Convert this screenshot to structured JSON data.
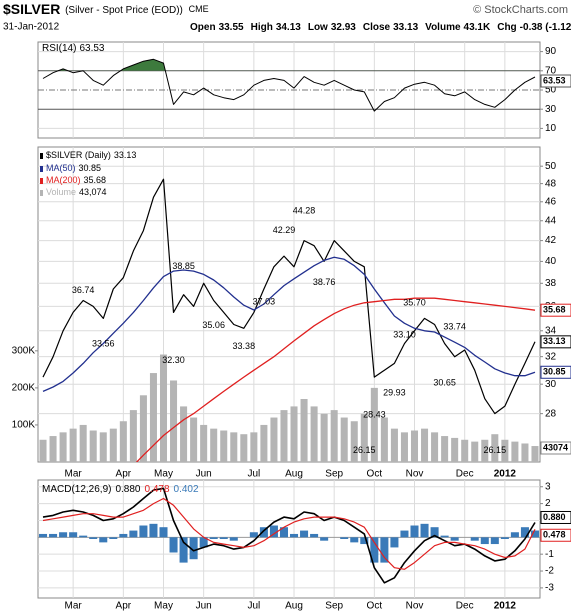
{
  "header": {
    "symbol": "$SILVER",
    "description": "(Silver - Spot Price (EOD))",
    "exchange": "CME",
    "date": "31-Jan-2012",
    "source": "© StockCharts.com",
    "quote": [
      {
        "label": "Open",
        "value": "33.55"
      },
      {
        "label": "High",
        "value": "34.13"
      },
      {
        "label": "Low",
        "value": "32.93"
      },
      {
        "label": "Close",
        "value": "33.13"
      },
      {
        "label": "Volume",
        "value": "43.1K"
      },
      {
        "label": "Chg",
        "value": "-0.38 (-1.12%)"
      }
    ]
  },
  "chart_data": [
    {
      "type": "rsi",
      "ylim": [
        0,
        100
      ],
      "yticks": [
        90,
        70,
        50,
        30,
        10
      ],
      "overbought": 70,
      "oversold": 30,
      "fill_color": "#3d7a3d",
      "series": [
        {
          "name": "RSI(14)",
          "color": "#000000",
          "values": [
            62,
            68,
            72,
            68,
            70,
            60,
            55,
            65,
            72,
            76,
            80,
            82,
            78,
            35,
            48,
            45,
            52,
            45,
            42,
            40,
            45,
            55,
            60,
            62,
            60,
            52,
            64,
            58,
            55,
            60,
            55,
            50,
            48,
            28,
            38,
            42,
            52,
            56,
            58,
            55,
            46,
            44,
            48,
            40,
            35,
            32,
            40,
            50,
            58,
            63.53
          ]
        }
      ]
    },
    {
      "type": "price",
      "log_scale": true,
      "grid": true,
      "ylim": [
        25,
        52.3
      ],
      "yticks": [
        28,
        30,
        32,
        34,
        36,
        38,
        40,
        42,
        44,
        46,
        48,
        50
      ],
      "y2lim": [
        0,
        850000
      ],
      "y2ticks": [
        {
          "value": 100000,
          "label": "100K"
        },
        {
          "value": 200000,
          "label": "200K"
        },
        {
          "value": 300000,
          "label": "300K"
        }
      ],
      "categories": [
        null,
        null,
        null,
        "Mar",
        null,
        null,
        null,
        null,
        "Apr",
        null,
        null,
        null,
        "May",
        null,
        null,
        null,
        "Jun",
        null,
        null,
        null,
        null,
        "Jul",
        null,
        null,
        null,
        "Aug",
        null,
        null,
        null,
        "Sep",
        null,
        null,
        null,
        "Oct",
        null,
        null,
        null,
        "Nov",
        null,
        null,
        null,
        null,
        "Dec",
        null,
        null,
        null,
        "2012",
        null,
        null,
        null
      ],
      "series": [
        {
          "name": "$SILVER (Daily)",
          "color": "#000000",
          "values": [
            30.5,
            32,
            34,
            35.5,
            36.5,
            36,
            35,
            37.5,
            38.5,
            41,
            43,
            46.5,
            48.5,
            35.5,
            37,
            36,
            38,
            36.5,
            35.5,
            34.5,
            34.2,
            35.5,
            37.5,
            39.5,
            40.5,
            39.5,
            42,
            41.5,
            40,
            42,
            41,
            40,
            39.5,
            30.5,
            31,
            31.5,
            33,
            34,
            35,
            34.5,
            33,
            32,
            32.5,
            31,
            29,
            28,
            28.5,
            30,
            31.5,
            33.13
          ]
        },
        {
          "name": "MA(50)",
          "color": "#22308f",
          "values": [
            29.5,
            29.8,
            30.2,
            30.8,
            31.5,
            32.3,
            33,
            33.8,
            34.6,
            35.5,
            36.5,
            37.6,
            38.6,
            39.1,
            39.2,
            39.1,
            38.8,
            38.3,
            37.6,
            36.8,
            36.1,
            35.7,
            36.2,
            37,
            37.8,
            38.4,
            39,
            39.6,
            40.1,
            40.4,
            40.2,
            39.6,
            38.8,
            37.5,
            36.3,
            35.2,
            34.6,
            34.2,
            34,
            33.9,
            33.5,
            33.1,
            32.7,
            32.1,
            31.6,
            31.1,
            30.8,
            30.6,
            30.6,
            30.85
          ]
        },
        {
          "name": "MA(200)",
          "color": "#e02020",
          "values": [
            21,
            21.4,
            21.8,
            22.2,
            22.6,
            23,
            23.4,
            23.8,
            24.3,
            24.8,
            25.4,
            26,
            26.6,
            27.1,
            27.6,
            28,
            28.5,
            29,
            29.5,
            30,
            30.5,
            31,
            31.5,
            32,
            32.6,
            33.2,
            33.8,
            34.4,
            34.9,
            35.4,
            35.8,
            36.1,
            36.3,
            36.4,
            36.5,
            36.6,
            36.6,
            36.7,
            36.7,
            36.7,
            36.6,
            36.5,
            36.4,
            36.3,
            36.2,
            36.1,
            36,
            35.9,
            35.8,
            35.68
          ]
        },
        {
          "name": "Volume",
          "color": "#b4b4b4",
          "axis": "y2",
          "last_label": "43,074",
          "values": [
            60000,
            70000,
            80000,
            90000,
            100000,
            85000,
            80000,
            90000,
            110000,
            140000,
            180000,
            240000,
            290000,
            220000,
            150000,
            120000,
            100000,
            90000,
            85000,
            80000,
            75000,
            80000,
            100000,
            120000,
            140000,
            150000,
            170000,
            150000,
            130000,
            140000,
            120000,
            110000,
            130000,
            200000,
            120000,
            90000,
            80000,
            85000,
            90000,
            80000,
            70000,
            65000,
            60000,
            55000,
            60000,
            75000,
            60000,
            55000,
            50000,
            43074
          ]
        }
      ],
      "annotations": [
        {
          "label": "36.74",
          "value": 36.74,
          "at": 4
        },
        {
          "label": "33.56",
          "value": 33.56,
          "at": 6
        },
        {
          "label": "38.85",
          "value": 38.85,
          "at": 14
        },
        {
          "label": "32.30",
          "value": 32.3,
          "at": 13
        },
        {
          "label": "35.06",
          "value": 35.06,
          "at": 17
        },
        {
          "label": "33.38",
          "value": 33.38,
          "at": 20
        },
        {
          "label": "42.29",
          "value": 42.29,
          "at": 24
        },
        {
          "label": "44.28",
          "value": 44.28,
          "at": 26
        },
        {
          "label": "37.03",
          "value": 37.03,
          "at": 22
        },
        {
          "label": "38.76",
          "value": 38.76,
          "at": 28
        },
        {
          "label": "35.70",
          "value": 35.7,
          "at": 37
        },
        {
          "label": "33.10",
          "value": 33.1,
          "at": 36
        },
        {
          "label": "33.74",
          "value": 33.74,
          "at": 41
        },
        {
          "label": "28.43",
          "value": 28.43,
          "at": 33
        },
        {
          "label": "29.93",
          "value": 29.93,
          "at": 35
        },
        {
          "label": "30.65",
          "value": 30.65,
          "at": 40
        },
        {
          "label": "26.15",
          "value": 26.15,
          "at": 32
        },
        {
          "label": "26.15",
          "value": 26.15,
          "at": 45
        }
      ]
    },
    {
      "type": "macd",
      "label": "MACD(12,26,9)",
      "ylim": [
        -3.6,
        3.4
      ],
      "yticks": [
        3,
        2,
        1,
        0,
        -1,
        -2,
        -3
      ],
      "series": [
        {
          "color": "#000000",
          "last_label": "0.880",
          "values": [
            1.2,
            1.3,
            1.5,
            1.6,
            1.5,
            1.3,
            1.0,
            1.1,
            1.4,
            1.8,
            2.3,
            2.8,
            2.9,
            1.0,
            -0.3,
            -0.8,
            -0.6,
            -0.4,
            -0.5,
            -0.7,
            -0.6,
            -0.2,
            0.4,
            0.9,
            1.2,
            1.1,
            1.5,
            1.4,
            1.0,
            1.2,
            1.0,
            0.6,
            0.2,
            -1.8,
            -2.7,
            -2.4,
            -1.5,
            -0.8,
            -0.2,
            0.1,
            -0.2,
            -0.5,
            -0.4,
            -0.7,
            -1.1,
            -1.4,
            -1.3,
            -0.8,
            -0.1,
            0.88
          ]
        },
        {
          "color": "#e02020",
          "last_label": "0.478",
          "values": [
            1.0,
            1.1,
            1.2,
            1.3,
            1.4,
            1.4,
            1.3,
            1.2,
            1.2,
            1.4,
            1.6,
            2.0,
            2.3,
            1.9,
            1.2,
            0.5,
            0.0,
            -0.3,
            -0.4,
            -0.5,
            -0.6,
            -0.5,
            -0.2,
            0.2,
            0.6,
            0.9,
            1.1,
            1.2,
            1.2,
            1.2,
            1.1,
            0.9,
            0.6,
            -0.3,
            -1.2,
            -1.8,
            -1.9,
            -1.5,
            -1.0,
            -0.5,
            -0.3,
            -0.3,
            -0.4,
            -0.5,
            -0.7,
            -1.0,
            -1.2,
            -1.1,
            -0.7,
            0.478
          ]
        },
        {
          "color": "#3a7ab8",
          "style": "bar",
          "last_label": "0.402",
          "values": [
            0.2,
            0.2,
            0.3,
            0.3,
            0.1,
            -0.1,
            -0.3,
            -0.1,
            0.2,
            0.4,
            0.7,
            0.8,
            0.6,
            -0.9,
            -1.5,
            -1.3,
            -0.6,
            -0.1,
            -0.1,
            -0.2,
            0,
            0.3,
            0.6,
            0.7,
            0.6,
            0.2,
            0.4,
            0.2,
            -0.2,
            0,
            -0.1,
            -0.3,
            -0.4,
            -1.5,
            -1.5,
            -0.6,
            0.4,
            0.7,
            0.8,
            0.6,
            0.1,
            -0.2,
            0,
            -0.2,
            -0.4,
            -0.4,
            -0.1,
            0.3,
            0.6,
            0.402
          ]
        }
      ]
    }
  ]
}
